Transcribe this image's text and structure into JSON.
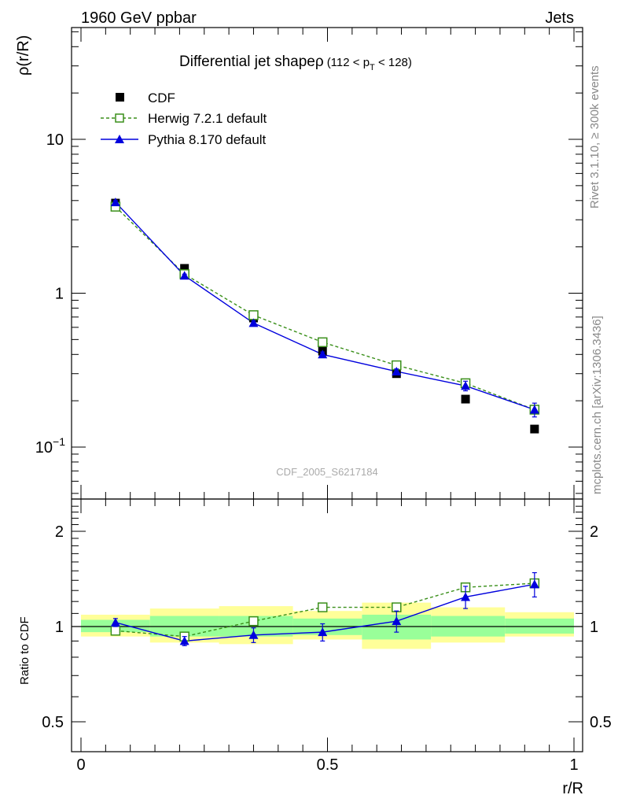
{
  "header": {
    "left": "1960 GeV ppbar",
    "right": "Jets"
  },
  "plot_title": {
    "main": "Differential jet shapeρ",
    "cut_prefix": "(112 < p",
    "cut_sub": "T",
    "cut_suffix": " < 128)"
  },
  "side_labels": {
    "rivet": "Rivet 3.1.10, ≥ 300k events",
    "mcplots": "mcplots.cern.ch [arXiv:1306.3436]"
  },
  "watermark": "CDF_2005_S6217184",
  "colors": {
    "cdf": "#000000",
    "herwig": "#3a8f1a",
    "pythia": "#0000dd",
    "band_outer": "#ffff99",
    "band_inner": "#99ff99"
  },
  "chart_data": [
    {
      "type": "scatter",
      "panel": "main",
      "ylabel": "ρ(r/R)",
      "yscale": "log",
      "ylim": [
        0.05,
        55
      ],
      "xlim": [
        0,
        1
      ],
      "yticks": [
        {
          "value": 10,
          "label": "10"
        },
        {
          "value": 1,
          "label": "1"
        },
        {
          "value": 0.1,
          "label": "10",
          "sup": "−1"
        }
      ],
      "legend_position": "top-left",
      "legend": [
        "CDF",
        "Herwig 7.2.1 default",
        "Pythia 8.170 default"
      ],
      "x": [
        0.07,
        0.21,
        0.35,
        0.49,
        0.64,
        0.78,
        0.92
      ],
      "series": [
        {
          "name": "CDF",
          "marker": "filled-square",
          "values": [
            3.85,
            1.45,
            0.69,
            0.42,
            0.3,
            0.205,
            0.131
          ]
        },
        {
          "name": "Herwig 7.2.1 default",
          "marker": "open-square",
          "line": "dashed",
          "values": [
            3.65,
            1.33,
            0.72,
            0.48,
            0.34,
            0.26,
            0.175
          ]
        },
        {
          "name": "Pythia 8.170 default",
          "marker": "filled-triangle",
          "line": "solid",
          "values": [
            3.9,
            1.3,
            0.64,
            0.4,
            0.31,
            0.25,
            0.175
          ],
          "errors": [
            0.1,
            0.03,
            0.02,
            0.015,
            0.012,
            0.018,
            0.018
          ]
        }
      ]
    },
    {
      "type": "scatter",
      "panel": "ratio",
      "ylabel": "Ratio to CDF",
      "xlabel": "r/R",
      "yscale": "log",
      "ylim": [
        0.4,
        2.5
      ],
      "xlim": [
        0,
        1
      ],
      "yticks": [
        {
          "value": 0.5,
          "label": "0.5"
        },
        {
          "value": 1,
          "label": "1"
        },
        {
          "value": 2,
          "label": "2"
        }
      ],
      "xticks": [
        {
          "value": 0,
          "label": "0"
        },
        {
          "value": 0.5,
          "label": "0.5"
        },
        {
          "value": 1,
          "label": "1"
        }
      ],
      "bands": [
        {
          "x0": 0.0,
          "x1": 0.14,
          "outer": [
            0.93,
            1.09
          ],
          "inner": [
            0.96,
            1.05
          ]
        },
        {
          "x0": 0.14,
          "x1": 0.28,
          "outer": [
            0.89,
            1.14
          ],
          "inner": [
            0.93,
            1.08
          ]
        },
        {
          "x0": 0.28,
          "x1": 0.43,
          "outer": [
            0.88,
            1.16
          ],
          "inner": [
            0.93,
            1.08
          ]
        },
        {
          "x0": 0.43,
          "x1": 0.57,
          "outer": [
            0.91,
            1.12
          ],
          "inner": [
            0.94,
            1.06
          ]
        },
        {
          "x0": 0.57,
          "x1": 0.71,
          "outer": [
            0.85,
            1.19
          ],
          "inner": [
            0.91,
            1.09
          ]
        },
        {
          "x0": 0.71,
          "x1": 0.86,
          "outer": [
            0.89,
            1.15
          ],
          "inner": [
            0.93,
            1.08
          ]
        },
        {
          "x0": 0.86,
          "x1": 1.0,
          "outer": [
            0.93,
            1.11
          ],
          "inner": [
            0.95,
            1.06
          ]
        }
      ],
      "x": [
        0.07,
        0.21,
        0.35,
        0.49,
        0.64,
        0.78,
        0.92
      ],
      "series": [
        {
          "name": "Herwig 7.2.1 default",
          "marker": "open-square",
          "line": "dashed",
          "values": [
            0.97,
            0.93,
            1.04,
            1.15,
            1.15,
            1.33,
            1.37
          ]
        },
        {
          "name": "Pythia 8.170 default",
          "marker": "filled-triangle",
          "line": "solid",
          "values": [
            1.03,
            0.9,
            0.94,
            0.96,
            1.04,
            1.24,
            1.36
          ],
          "errors": [
            0.03,
            0.03,
            0.05,
            0.06,
            0.08,
            0.1,
            0.12
          ]
        }
      ]
    }
  ]
}
